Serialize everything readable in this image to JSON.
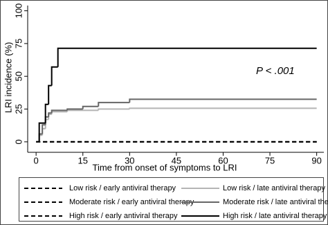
{
  "chart_data": {
    "type": "step",
    "xlabel": "Time from onset of symptoms to LRI",
    "ylabel": "LRI incidence (%)",
    "annotation": "P < .001",
    "xlim": [
      -2.7,
      92.3
    ],
    "ylim": [
      -8,
      104
    ],
    "xticks": [
      0,
      15,
      30,
      45,
      60,
      75,
      90
    ],
    "yticks": [
      0,
      25,
      50,
      75,
      100
    ],
    "series": [
      {
        "name": "Low risk / early antiviral therapy",
        "color": "#000000",
        "dash": true,
        "x": [
          0,
          90
        ],
        "values": [
          0,
          0
        ]
      },
      {
        "name": "Moderate risk / early antiviral therapy",
        "color": "#000000",
        "dash": true,
        "x": [
          0,
          90
        ],
        "values": [
          0,
          0
        ]
      },
      {
        "name": "High risk / early antiviral therapy",
        "color": "#000000",
        "dash": true,
        "x": [
          0,
          90
        ],
        "values": [
          0,
          0
        ]
      },
      {
        "name": "Low risk / late antiviral therapy",
        "color": "#b4b4b4",
        "dash": false,
        "x": [
          0,
          1,
          2,
          3,
          4,
          5,
          10,
          20,
          30,
          90
        ],
        "values": [
          0,
          5,
          10,
          17,
          21,
          23,
          24,
          25,
          25.6,
          25.6
        ]
      },
      {
        "name": "Moderate risk / late antiviral therapy",
        "color": "#666666",
        "dash": false,
        "x": [
          0,
          1,
          2,
          3,
          4,
          5,
          10,
          15,
          20,
          30,
          90
        ],
        "values": [
          0,
          6,
          13,
          19,
          22,
          24,
          25,
          27,
          30,
          32.5,
          32.5
        ]
      },
      {
        "name": "High risk / late antiviral therapy",
        "color": "#000000",
        "dash": false,
        "x": [
          0,
          1,
          3,
          4,
          5,
          7,
          90
        ],
        "values": [
          0,
          14.3,
          28.6,
          42.9,
          57.1,
          71.4,
          71.4
        ]
      }
    ]
  }
}
